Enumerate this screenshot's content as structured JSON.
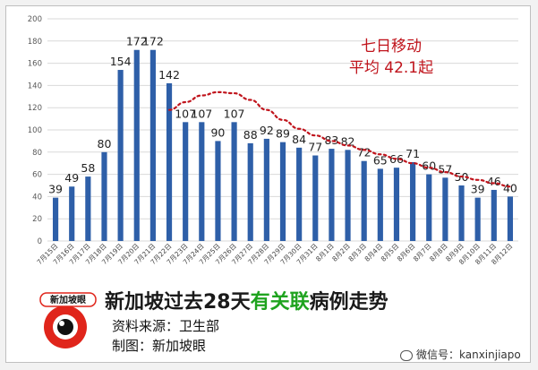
{
  "chart_data": {
    "type": "bar",
    "categories": [
      "7月15日",
      "7月16日",
      "7月17日",
      "7月18日",
      "7月19日",
      "7月20日",
      "7月21日",
      "7月22日",
      "7月23日",
      "7月24日",
      "7月25日",
      "7月26日",
      "7月27日",
      "7月28日",
      "7月29日",
      "7月30日",
      "7月31日",
      "8月1日",
      "8月2日",
      "8月3日",
      "8月4日",
      "8月5日",
      "8月6日",
      "8月7日",
      "8月8日",
      "8月9日",
      "8月10日",
      "8月11日",
      "8月12日"
    ],
    "values": [
      39,
      49,
      58,
      80,
      154,
      172,
      172,
      142,
      107,
      107,
      90,
      107,
      88,
      92,
      89,
      84,
      77,
      83,
      82,
      72,
      65,
      66,
      71,
      60,
      57,
      50,
      39,
      46,
      40
    ],
    "ylim": [
      0,
      200
    ],
    "yticks": [
      0,
      20,
      40,
      60,
      80,
      100,
      120,
      140,
      160,
      180,
      200
    ],
    "grid": true,
    "bar_color": "#2e5fa8",
    "moving_average": {
      "label_line1": "七日移动",
      "label_line2": "平均 42.1起",
      "color": "#c0141c",
      "from_index": 7,
      "values": [
        118,
        125,
        131,
        134,
        133,
        127,
        118,
        109,
        101,
        95,
        90,
        86,
        82,
        78,
        74,
        70,
        66,
        62,
        58,
        55,
        52,
        49
      ]
    }
  },
  "footer": {
    "title_part1": "新加坡过去28天",
    "title_highlight": "有关联",
    "title_part2": "病例走势",
    "source": "资料来源：卫生部",
    "credit": "制图：新加坡眼",
    "logo_text": "新加坡眼",
    "watermark": "微信号：kanxinjiapo"
  }
}
